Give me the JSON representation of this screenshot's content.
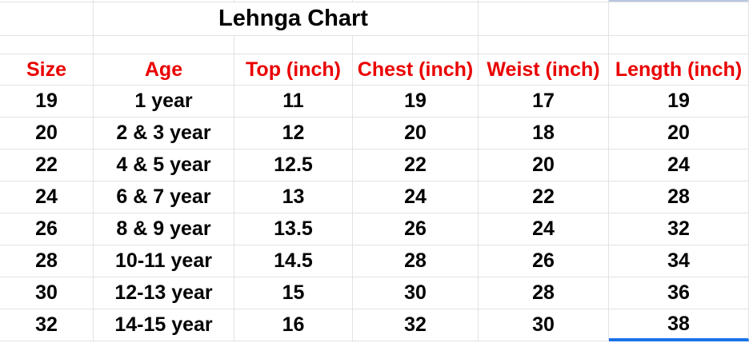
{
  "sheet": {
    "title": "Lehnga Chart",
    "table": {
      "headers": [
        "Size",
        "Age",
        "Top (inch)",
        "Chest (inch)",
        "Weist (inch)",
        "Length (inch)"
      ],
      "rows": [
        [
          "19",
          "1 year",
          "11",
          "19",
          "17",
          "19"
        ],
        [
          "20",
          "2 & 3 year",
          "12",
          "20",
          "18",
          "20"
        ],
        [
          "22",
          "4 & 5 year",
          "12.5",
          "22",
          "20",
          "24"
        ],
        [
          "24",
          "6 & 7 year",
          "13",
          "24",
          "22",
          "28"
        ],
        [
          "26",
          "8 & 9 year",
          "13.5",
          "26",
          "24",
          "32"
        ],
        [
          "28",
          "10-11 year",
          "14.5",
          "28",
          "26",
          "34"
        ],
        [
          "30",
          "12-13 year",
          "15",
          "30",
          "28",
          "36"
        ],
        [
          "32",
          "14-15 year",
          "16",
          "32",
          "30",
          "38"
        ]
      ]
    },
    "colors": {
      "header_text": "#ea0000",
      "gridline": "#e2e2e2",
      "selection_border": "#1a73e8",
      "top_sliver_fill": "#b8c6df",
      "body_text": "#000000",
      "background": "#ffffff"
    }
  }
}
